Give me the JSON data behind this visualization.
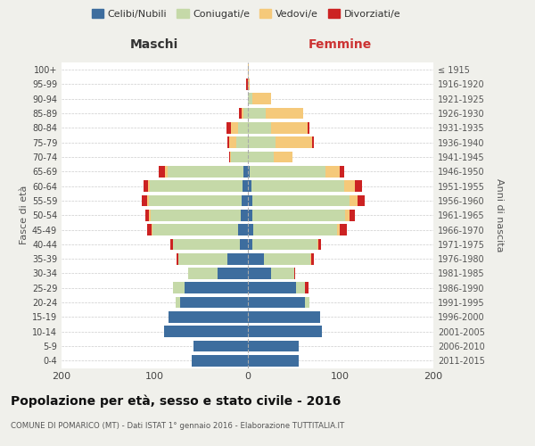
{
  "age_groups": [
    "0-4",
    "5-9",
    "10-14",
    "15-19",
    "20-24",
    "25-29",
    "30-34",
    "35-39",
    "40-44",
    "45-49",
    "50-54",
    "55-59",
    "60-64",
    "65-69",
    "70-74",
    "75-79",
    "80-84",
    "85-89",
    "90-94",
    "95-99",
    "100+"
  ],
  "birth_years": [
    "2011-2015",
    "2006-2010",
    "2001-2005",
    "1996-2000",
    "1991-1995",
    "1986-1990",
    "1981-1985",
    "1976-1980",
    "1971-1975",
    "1966-1970",
    "1961-1965",
    "1956-1960",
    "1951-1955",
    "1946-1950",
    "1941-1945",
    "1936-1940",
    "1931-1935",
    "1926-1930",
    "1921-1925",
    "1916-1920",
    "≤ 1915"
  ],
  "colors": {
    "celibi": "#3d6d9e",
    "coniugati": "#c5d9a8",
    "vedovi": "#f5c97a",
    "divorziati": "#cc2222"
  },
  "males": {
    "celibi": [
      60,
      58,
      90,
      85,
      72,
      68,
      32,
      22,
      8,
      10,
      7,
      6,
      5,
      4,
      0,
      0,
      0,
      0,
      0,
      0,
      0
    ],
    "coniugati": [
      0,
      0,
      0,
      0,
      5,
      12,
      32,
      52,
      72,
      92,
      97,
      100,
      100,
      82,
      18,
      12,
      10,
      4,
      0,
      0,
      0
    ],
    "vedovi": [
      0,
      0,
      0,
      0,
      0,
      0,
      0,
      0,
      0,
      1,
      2,
      2,
      2,
      3,
      1,
      8,
      8,
      2,
      0,
      0,
      0
    ],
    "divorziati": [
      0,
      0,
      0,
      0,
      0,
      0,
      0,
      2,
      3,
      5,
      4,
      6,
      5,
      6,
      1,
      2,
      5,
      3,
      0,
      1,
      0
    ]
  },
  "females": {
    "celibi": [
      55,
      55,
      80,
      78,
      62,
      52,
      25,
      18,
      5,
      6,
      5,
      5,
      4,
      2,
      0,
      0,
      0,
      0,
      0,
      0,
      0
    ],
    "coniugati": [
      0,
      0,
      0,
      0,
      5,
      10,
      25,
      50,
      70,
      90,
      100,
      105,
      100,
      82,
      28,
      30,
      25,
      20,
      5,
      0,
      0
    ],
    "vedovi": [
      0,
      0,
      0,
      0,
      0,
      0,
      0,
      1,
      1,
      3,
      5,
      8,
      12,
      15,
      20,
      40,
      40,
      40,
      20,
      2,
      1
    ],
    "divorziati": [
      0,
      0,
      0,
      0,
      0,
      4,
      1,
      2,
      3,
      8,
      6,
      8,
      7,
      5,
      0,
      1,
      2,
      0,
      0,
      0,
      0
    ]
  },
  "title": "Popolazione per età, sesso e stato civile - 2016",
  "subtitle": "COMUNE DI POMARICO (MT) - Dati ISTAT 1° gennaio 2016 - Elaborazione TUTTITALIA.IT",
  "ylabel_left": "Fasce di età",
  "ylabel_right": "Anni di nascita",
  "xlabel_left": "Maschi",
  "xlabel_right": "Femmine",
  "xlim": 200,
  "bg_color": "#f0f0eb",
  "plot_bg": "#ffffff"
}
